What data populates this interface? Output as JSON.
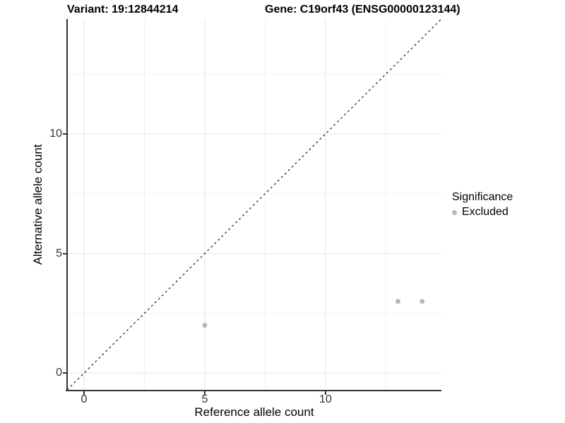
{
  "chart_data": {
    "type": "scatter",
    "title_left": "Variant: 19:12844214",
    "title_right": "Gene: C19orf43 (ENSG00000123144)",
    "xlabel": "Reference allele count",
    "ylabel": "Alternative allele count",
    "xlim": [
      -0.7,
      14.8
    ],
    "ylim": [
      -0.7,
      14.8
    ],
    "x_ticks": [
      0,
      5,
      10
    ],
    "y_ticks": [
      0,
      5,
      10
    ],
    "x_minor_ticks": [
      2.5,
      7.5,
      12.5
    ],
    "y_minor_ticks": [
      2.5,
      7.5,
      12.5
    ],
    "grid": "major+minor",
    "reference_line": {
      "type": "identity y=x",
      "style": "dashed",
      "color": "#1a1a1a",
      "from": [
        -0.7,
        -0.7
      ],
      "to": [
        14.8,
        14.8
      ]
    },
    "series": [
      {
        "name": "Excluded",
        "marker": "circle",
        "color": "#b9b9b9",
        "points": [
          [
            5,
            2
          ],
          [
            13,
            3
          ],
          [
            14,
            3
          ]
        ]
      }
    ],
    "legend": {
      "title": "Significance",
      "position": "right",
      "items": [
        {
          "label": "Excluded",
          "color": "#b9b9b9"
        }
      ]
    }
  },
  "styles": {
    "grid_major_color": "#e4e4e4",
    "grid_minor_color": "#f0f0f0",
    "axis_line_color": "#333333",
    "tick_text_color": "#333333",
    "point_radius": 3.5
  }
}
